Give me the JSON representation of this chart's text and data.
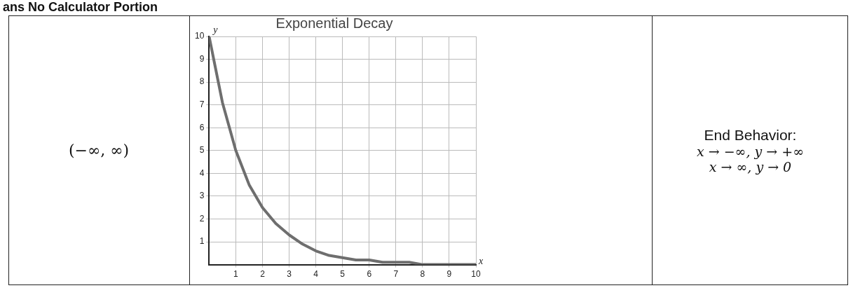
{
  "chart_data": {
    "type": "line",
    "title": "Exponential Decay",
    "xlabel": "x",
    "ylabel": "y",
    "x": [
      0,
      0.5,
      1,
      1.5,
      2,
      2.5,
      3,
      3.5,
      4,
      4.5,
      5,
      5.5,
      6,
      6.5,
      7,
      7.5,
      8,
      8.5,
      9,
      9.5,
      10
    ],
    "series": [
      {
        "color": "#6e6e6e",
        "values": [
          10,
          7.1,
          5,
          3.5,
          2.5,
          1.8,
          1.3,
          0.9,
          0.6,
          0.4,
          0.3,
          0.2,
          0.2,
          0.1,
          0.1,
          0.1,
          0,
          0,
          0,
          0,
          0
        ]
      }
    ],
    "xlim": [
      0,
      10
    ],
    "ylim": [
      0,
      10
    ],
    "xticks": [
      1,
      2,
      3,
      4,
      5,
      6,
      7,
      8,
      9,
      10
    ],
    "yticks": [
      1,
      2,
      3,
      4,
      5,
      6,
      7,
      8,
      9,
      10
    ],
    "grid": true,
    "marker": "none",
    "annotations": [
      "ans No Calculator Portion",
      "(−∞, ∞)",
      "End Behavior:",
      "x → −∞, y → +∞",
      "x → ∞, y → 0"
    ]
  }
}
